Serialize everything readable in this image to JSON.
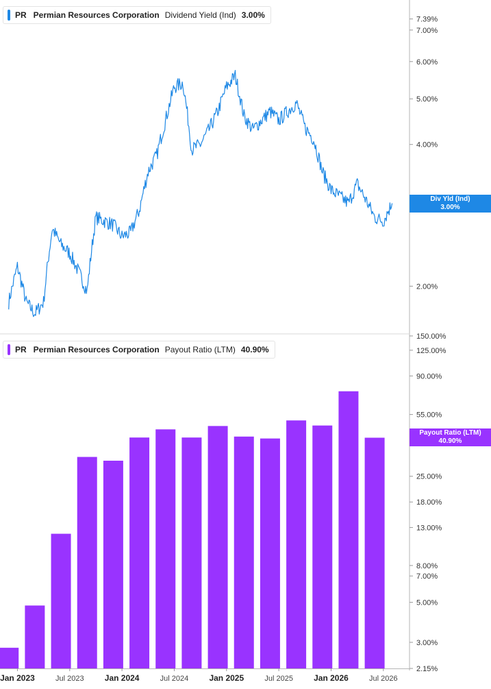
{
  "chart_data": [
    {
      "type": "line",
      "ticker": "PR",
      "company": "Permian Resources Corporation",
      "metric": "Dividend Yield (Ind)",
      "current_value": "3.00%",
      "tag_label": "Div Yld (Ind)",
      "color": "#1e88e5",
      "y_scale": "log",
      "y_ticks": [
        "7.39%",
        "7.00%",
        "6.00%",
        "5.00%",
        "4.00%",
        "2.00%"
      ],
      "y_tick_values": [
        7.39,
        7.0,
        6.0,
        5.0,
        4.0,
        2.0
      ],
      "ylim": [
        1.6,
        8.0
      ],
      "series": [
        {
          "x": [
            "2022-12",
            "2023-01",
            "2023-02",
            "2023-03",
            "2023-04",
            "2023-05",
            "2023-06",
            "2023-07",
            "2023-08",
            "2023-09",
            "2023-10",
            "2023-11",
            "2023-12",
            "2024-01",
            "2024-02",
            "2024-03",
            "2024-04",
            "2024-05",
            "2024-06",
            "2024-07",
            "2024-08",
            "2024-09",
            "2024-10",
            "2024-11",
            "2024-12",
            "2025-01",
            "2025-02",
            "2025-03",
            "2025-04",
            "2025-05",
            "2025-06",
            "2025-07",
            "2025-08",
            "2025-09",
            "2025-10",
            "2025-11",
            "2025-12",
            "2026-01",
            "2026-02",
            "2026-03",
            "2026-04",
            "2026-05",
            "2026-06",
            "2026-07",
            "2026-08"
          ],
          "values": [
            1.85,
            2.2,
            1.85,
            1.75,
            1.85,
            2.65,
            2.45,
            2.35,
            2.15,
            1.95,
            2.8,
            2.75,
            2.7,
            2.55,
            2.6,
            2.9,
            3.5,
            3.8,
            4.5,
            5.3,
            5.4,
            3.9,
            4.0,
            4.3,
            4.7,
            5.3,
            5.6,
            4.6,
            4.3,
            4.5,
            4.7,
            4.5,
            4.7,
            4.9,
            4.35,
            4.1,
            3.5,
            3.2,
            3.1,
            3.0,
            3.3,
            3.05,
            2.8,
            2.75,
            3.0
          ]
        }
      ]
    },
    {
      "type": "bar",
      "ticker": "PR",
      "company": "Permian Resources Corporation",
      "metric": "Payout Ratio (LTM)",
      "current_value": "40.90%",
      "tag_label": "Payout Ratio (LTM)",
      "color": "#9933ff",
      "y_scale": "log",
      "y_ticks": [
        "150.00%",
        "125.00%",
        "90.00%",
        "55.00%",
        "25.00%",
        "18.00%",
        "13.00%",
        "8.00%",
        "7.00%",
        "5.00%",
        "3.00%",
        "2.15%"
      ],
      "y_tick_values": [
        150,
        125,
        90,
        55,
        25,
        18,
        13,
        8,
        7,
        5,
        3,
        2.15
      ],
      "ylim": [
        2.15,
        150
      ],
      "categories": [
        "2022-12",
        "2023-03",
        "2023-06",
        "2023-09",
        "2023-12",
        "2024-03",
        "2024-06",
        "2024-09",
        "2024-12",
        "2025-03",
        "2025-06",
        "2025-09",
        "2025-12",
        "2026-03",
        "2026-06"
      ],
      "values": [
        2.8,
        4.8,
        12.0,
        32.0,
        30.5,
        41.0,
        45.5,
        41.0,
        47.5,
        41.5,
        40.5,
        51.0,
        47.8,
        74.0,
        40.9
      ]
    }
  ],
  "x_axis": {
    "labels": [
      "Jan 2023",
      "Jul 2023",
      "Jan 2024",
      "Jul 2024",
      "Jan 2025",
      "Jul 2025",
      "Jan 2026",
      "Jul 2026"
    ],
    "label_dates": [
      "2023-01",
      "2023-07",
      "2024-01",
      "2024-07",
      "2025-01",
      "2025-07",
      "2026-01",
      "2026-07"
    ],
    "major": [
      true,
      false,
      true,
      false,
      true,
      false,
      true,
      false
    ],
    "range": [
      "2022-11",
      "2026-10"
    ]
  }
}
